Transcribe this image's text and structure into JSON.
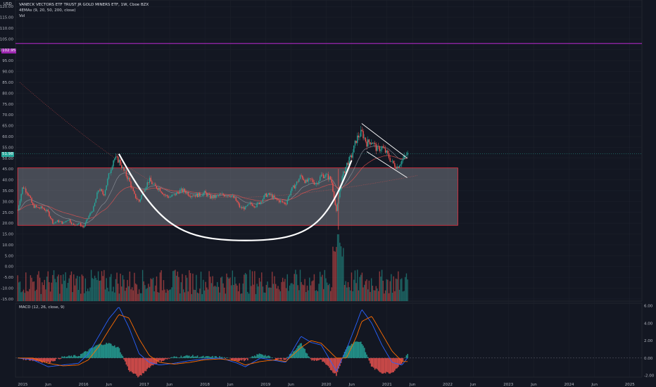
{
  "header": {
    "symbol_title": "VANECK VECTORS ETF TRUST JR GOLD MINERS ETF, 1W, Cboe BZX",
    "ema_label": "4EMAs (9, 20, 50, 200, close)",
    "vol_label": "Vol",
    "currency": "USD",
    "macd_label": "MACD (12, 26, close, 9)"
  },
  "price_tags": {
    "resistance": "102.95",
    "last": "51.98"
  },
  "colors": {
    "background": "#131722",
    "up": "#26a69a",
    "down": "#ef5350",
    "resistance_line": "#9c27b0",
    "box_fill": "#d1d4dc",
    "box_border": "#f23645",
    "macd_line": "#2962ff",
    "signal_line": "#ff6d00"
  },
  "chart_data": [
    {
      "type": "line",
      "title": "VANECK VECTORS ETF TRUST JR GOLD MINERS ETF, 1W, Cboe BZX",
      "x_ticks": [
        "2015",
        "Jun",
        "2016",
        "Jun",
        "2017",
        "Jun",
        "2018",
        "Jun",
        "2019",
        "Jun",
        "2020",
        "Jun",
        "2021",
        "Jun",
        "2022",
        "Jun",
        "2023",
        "Jun",
        "2024",
        "Jun",
        "2025"
      ],
      "y_ticks": [
        "120.00",
        "115.00",
        "110.00",
        "105.00",
        "100.00",
        "95.00",
        "90.00",
        "85.00",
        "80.00",
        "75.00",
        "70.00",
        "65.00",
        "60.00",
        "55.00",
        "50.00",
        "45.00",
        "40.00",
        "35.00",
        "30.00",
        "25.00",
        "20.00",
        "15.00",
        "10.00",
        "5.00",
        "0.00",
        "-5.00",
        "-10.00",
        "-15.00"
      ],
      "ylim": [
        -16,
        123
      ],
      "resistance_level": 102.95,
      "last_price": 51.98,
      "consolidation_box": {
        "y_low": 19,
        "y_high": 45.5,
        "x_start": "2014-12",
        "x_end": "2022-03"
      },
      "cup_curve": [
        {
          "x": "2016-08",
          "y": 52
        },
        {
          "x": "2018-09",
          "y": 12
        },
        {
          "x": "2020-06",
          "y": 49
        }
      ],
      "channel_upper": [
        {
          "x": "2020-08",
          "y": 66
        },
        {
          "x": "2021-05",
          "y": 50
        }
      ],
      "channel_lower": [
        {
          "x": "2020-09",
          "y": 53
        },
        {
          "x": "2021-05",
          "y": 41
        }
      ],
      "series": [
        {
          "values_weekly_close": [
            {
              "x": "2014-12",
              "y": 26
            },
            {
              "x": "2015-01",
              "y": 37
            },
            {
              "x": "2015-02",
              "y": 34
            },
            {
              "x": "2015-03",
              "y": 28
            },
            {
              "x": "2015-04",
              "y": 27
            },
            {
              "x": "2015-05",
              "y": 27
            },
            {
              "x": "2015-06",
              "y": 25
            },
            {
              "x": "2015-07",
              "y": 20
            },
            {
              "x": "2015-08",
              "y": 21
            },
            {
              "x": "2015-09",
              "y": 20
            },
            {
              "x": "2015-10",
              "y": 22
            },
            {
              "x": "2015-11",
              "y": 19
            },
            {
              "x": "2015-12",
              "y": 20
            },
            {
              "x": "2016-01",
              "y": 18
            },
            {
              "x": "2016-02",
              "y": 23
            },
            {
              "x": "2016-03",
              "y": 27
            },
            {
              "x": "2016-04",
              "y": 36
            },
            {
              "x": "2016-05",
              "y": 33
            },
            {
              "x": "2016-06",
              "y": 42
            },
            {
              "x": "2016-07",
              "y": 50
            },
            {
              "x": "2016-08",
              "y": 49
            },
            {
              "x": "2016-09",
              "y": 44
            },
            {
              "x": "2016-10",
              "y": 40
            },
            {
              "x": "2016-11",
              "y": 33
            },
            {
              "x": "2016-12",
              "y": 30
            },
            {
              "x": "2017-01",
              "y": 36
            },
            {
              "x": "2017-02",
              "y": 40
            },
            {
              "x": "2017-03",
              "y": 37
            },
            {
              "x": "2017-04",
              "y": 36
            },
            {
              "x": "2017-05",
              "y": 33
            },
            {
              "x": "2017-06",
              "y": 32
            },
            {
              "x": "2017-07",
              "y": 33
            },
            {
              "x": "2017-08",
              "y": 35
            },
            {
              "x": "2017-09",
              "y": 35
            },
            {
              "x": "2017-10",
              "y": 33
            },
            {
              "x": "2017-11",
              "y": 33
            },
            {
              "x": "2017-12",
              "y": 33
            },
            {
              "x": "2018-01",
              "y": 34
            },
            {
              "x": "2018-02",
              "y": 32
            },
            {
              "x": "2018-03",
              "y": 32
            },
            {
              "x": "2018-04",
              "y": 33
            },
            {
              "x": "2018-05",
              "y": 33
            },
            {
              "x": "2018-06",
              "y": 33
            },
            {
              "x": "2018-07",
              "y": 31
            },
            {
              "x": "2018-08",
              "y": 27
            },
            {
              "x": "2018-09",
              "y": 27
            },
            {
              "x": "2018-10",
              "y": 29
            },
            {
              "x": "2018-11",
              "y": 28
            },
            {
              "x": "2018-12",
              "y": 30
            },
            {
              "x": "2019-01",
              "y": 33
            },
            {
              "x": "2019-02",
              "y": 33
            },
            {
              "x": "2019-03",
              "y": 31
            },
            {
              "x": "2019-04",
              "y": 30
            },
            {
              "x": "2019-05",
              "y": 29
            },
            {
              "x": "2019-06",
              "y": 35
            },
            {
              "x": "2019-07",
              "y": 38
            },
            {
              "x": "2019-08",
              "y": 42
            },
            {
              "x": "2019-09",
              "y": 39
            },
            {
              "x": "2019-10",
              "y": 40
            },
            {
              "x": "2019-11",
              "y": 38
            },
            {
              "x": "2019-12",
              "y": 42
            },
            {
              "x": "2020-01",
              "y": 42
            },
            {
              "x": "2020-02",
              "y": 40
            },
            {
              "x": "2020-03",
              "y": 25
            },
            {
              "x": "2020-04",
              "y": 40
            },
            {
              "x": "2020-05",
              "y": 47
            },
            {
              "x": "2020-06",
              "y": 51
            },
            {
              "x": "2020-07",
              "y": 59
            },
            {
              "x": "2020-08",
              "y": 62
            },
            {
              "x": "2020-09",
              "y": 57
            },
            {
              "x": "2020-10",
              "y": 58
            },
            {
              "x": "2020-11",
              "y": 54
            },
            {
              "x": "2020-12",
              "y": 55
            },
            {
              "x": "2021-01",
              "y": 52
            },
            {
              "x": "2021-02",
              "y": 48
            },
            {
              "x": "2021-03",
              "y": 46
            },
            {
              "x": "2021-04",
              "y": 49
            },
            {
              "x": "2021-05",
              "y": 52
            }
          ]
        }
      ]
    },
    {
      "type": "line",
      "title": "MACD (12, 26, close, 9)",
      "y_ticks": [
        "6.00",
        "4.00",
        "2.00",
        "0.00",
        "-2.00"
      ],
      "ylim": [
        -2.2,
        6.3
      ],
      "series": [
        {
          "values": [
            {
              "x": "2014-12",
              "y": 0.0
            },
            {
              "x": "2015-03",
              "y": -0.2
            },
            {
              "x": "2015-06",
              "y": -1.0
            },
            {
              "x": "2015-09",
              "y": -0.8
            },
            {
              "x": "2015-12",
              "y": -0.6
            },
            {
              "x": "2016-02",
              "y": 0.5
            },
            {
              "x": "2016-04",
              "y": 2.5
            },
            {
              "x": "2016-06",
              "y": 4.5
            },
            {
              "x": "2016-08",
              "y": 5.9
            },
            {
              "x": "2016-10",
              "y": 3.5
            },
            {
              "x": "2016-12",
              "y": 0.5
            },
            {
              "x": "2017-02",
              "y": -0.5
            },
            {
              "x": "2017-04",
              "y": -0.8
            },
            {
              "x": "2017-07",
              "y": -0.6
            },
            {
              "x": "2017-10",
              "y": -0.3
            },
            {
              "x": "2018-01",
              "y": -0.1
            },
            {
              "x": "2018-04",
              "y": 0.0
            },
            {
              "x": "2018-07",
              "y": -0.5
            },
            {
              "x": "2018-09",
              "y": -1.0
            },
            {
              "x": "2018-12",
              "y": 0.0
            },
            {
              "x": "2019-03",
              "y": -0.3
            },
            {
              "x": "2019-05",
              "y": -0.5
            },
            {
              "x": "2019-08",
              "y": 2.5
            },
            {
              "x": "2019-10",
              "y": 1.8
            },
            {
              "x": "2019-12",
              "y": 1.5
            },
            {
              "x": "2020-03",
              "y": -1.5
            },
            {
              "x": "2020-05",
              "y": 1.0
            },
            {
              "x": "2020-07",
              "y": 4.0
            },
            {
              "x": "2020-08",
              "y": 5.6
            },
            {
              "x": "2020-10",
              "y": 4.0
            },
            {
              "x": "2020-12",
              "y": 1.5
            },
            {
              "x": "2021-02",
              "y": -0.5
            },
            {
              "x": "2021-04",
              "y": -0.8
            },
            {
              "x": "2021-05",
              "y": 0.0
            }
          ]
        },
        {
          "values": [
            {
              "x": "2014-12",
              "y": 0.0
            },
            {
              "x": "2015-03",
              "y": 0.0
            },
            {
              "x": "2015-06",
              "y": -0.6
            },
            {
              "x": "2015-09",
              "y": -0.9
            },
            {
              "x": "2015-12",
              "y": -0.8
            },
            {
              "x": "2016-02",
              "y": -0.2
            },
            {
              "x": "2016-04",
              "y": 1.3
            },
            {
              "x": "2016-06",
              "y": 3.2
            },
            {
              "x": "2016-08",
              "y": 5.0
            },
            {
              "x": "2016-10",
              "y": 4.6
            },
            {
              "x": "2016-12",
              "y": 2.2
            },
            {
              "x": "2017-02",
              "y": 0.3
            },
            {
              "x": "2017-04",
              "y": -0.5
            },
            {
              "x": "2017-07",
              "y": -0.7
            },
            {
              "x": "2017-10",
              "y": -0.5
            },
            {
              "x": "2018-01",
              "y": -0.2
            },
            {
              "x": "2018-04",
              "y": -0.1
            },
            {
              "x": "2018-07",
              "y": -0.3
            },
            {
              "x": "2018-09",
              "y": -0.8
            },
            {
              "x": "2018-12",
              "y": -0.4
            },
            {
              "x": "2019-03",
              "y": -0.2
            },
            {
              "x": "2019-05",
              "y": -0.4
            },
            {
              "x": "2019-08",
              "y": 1.2
            },
            {
              "x": "2019-10",
              "y": 2.0
            },
            {
              "x": "2019-12",
              "y": 1.7
            },
            {
              "x": "2020-03",
              "y": 0.0
            },
            {
              "x": "2020-05",
              "y": 0.0
            },
            {
              "x": "2020-07",
              "y": 2.5
            },
            {
              "x": "2020-08",
              "y": 4.2
            },
            {
              "x": "2020-10",
              "y": 4.8
            },
            {
              "x": "2020-12",
              "y": 2.8
            },
            {
              "x": "2021-02",
              "y": 0.8
            },
            {
              "x": "2021-04",
              "y": -0.4
            },
            {
              "x": "2021-05",
              "y": -0.4
            }
          ]
        }
      ]
    }
  ]
}
